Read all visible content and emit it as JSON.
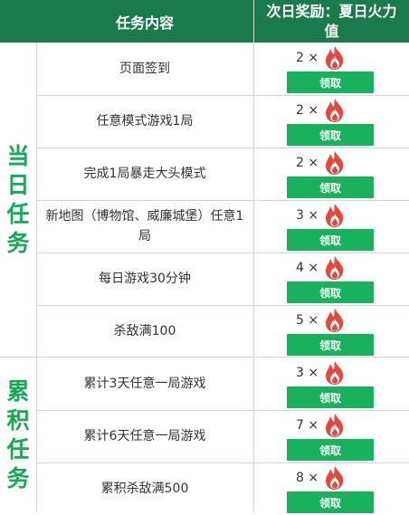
{
  "header": {
    "task_col": "任务内容",
    "reward_col_line1": "次日奖励：夏日火力",
    "reward_col_line2": "值"
  },
  "categories": [
    {
      "label_chars": [
        "当",
        "日",
        "任",
        "务"
      ]
    },
    {
      "label_chars": [
        "累",
        "积",
        "任",
        "务"
      ]
    }
  ],
  "rows": [
    {
      "task": "页面签到",
      "count": "2 ×",
      "button": "领取"
    },
    {
      "task": "任意模式游戏1局",
      "count": "2 ×",
      "button": "领取"
    },
    {
      "task": "完成1局暴走大头模式",
      "count": "2 ×",
      "button": "领取"
    },
    {
      "task": "新地图（博物馆、威廉城堡）任意1局",
      "count": "3 ×",
      "button": "领取"
    },
    {
      "task": "每日游戏30分钟",
      "count": "4 ×",
      "button": "领取"
    },
    {
      "task": "杀敌满100",
      "count": "5 ×",
      "button": "领取"
    },
    {
      "task": "累计3天任意一局游戏",
      "count": "3 ×",
      "button": "领取"
    },
    {
      "task": "累计6天任意一局游戏",
      "count": "7 ×",
      "button": "领取"
    },
    {
      "task": "累积杀敌满500",
      "count": "8 ×",
      "button": "领取"
    }
  ],
  "icons": {
    "reward": "fire-icon"
  },
  "colors": {
    "header_bg": "#1c7a4f",
    "accent_green": "#16a957",
    "button_bg": "#18b15c",
    "flame": "#e8453c"
  }
}
